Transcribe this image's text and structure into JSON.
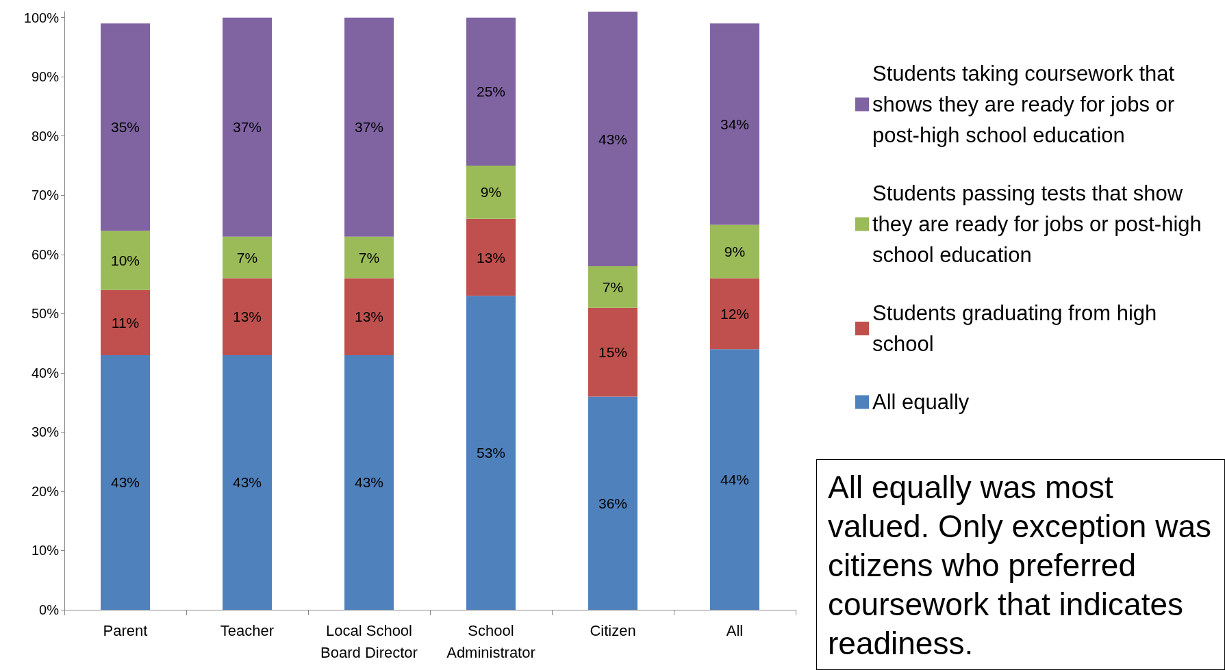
{
  "chart_data": {
    "type": "bar",
    "stacked": true,
    "categories": [
      "Parent",
      "Teacher",
      "Local School\nBoard Director",
      "School\nAdministrator",
      "Citizen",
      "All"
    ],
    "series": [
      {
        "name": "All equally",
        "color": "#4f81bd",
        "values": [
          43,
          43,
          43,
          53,
          36,
          44
        ],
        "value_labels": [
          "43%",
          "43%",
          "43%",
          "53%",
          "36%",
          "44%"
        ]
      },
      {
        "name": "Students graduating from high school",
        "color": "#c0504d",
        "values": [
          11,
          13,
          13,
          13,
          15,
          12
        ],
        "value_labels": [
          "11%",
          "13%",
          "13%",
          "13%",
          "15%",
          "12%"
        ]
      },
      {
        "name": "Students passing tests that show they are ready for jobs or post-high school education",
        "color": "#9bbb59",
        "values": [
          10,
          7,
          7,
          9,
          7,
          9
        ],
        "value_labels": [
          "10%",
          "7%",
          "7%",
          "9%",
          "7%",
          "9%"
        ]
      },
      {
        "name": "Students taking coursework that shows they are ready for jobs or post-high school education",
        "color": "#8064a2",
        "values": [
          35,
          37,
          37,
          25,
          43,
          34
        ],
        "value_labels": [
          "35%",
          "37%",
          "37%",
          "25%",
          "43%",
          "34%"
        ]
      }
    ],
    "ylim": [
      0,
      101
    ],
    "yticks": [
      {
        "value": 0,
        "label": "0%"
      },
      {
        "value": 10,
        "label": "10%"
      },
      {
        "value": 20,
        "label": "20%"
      },
      {
        "value": 30,
        "label": "30%"
      },
      {
        "value": 40,
        "label": "40%"
      },
      {
        "value": 50,
        "label": "50%"
      },
      {
        "value": 60,
        "label": "60%"
      },
      {
        "value": 70,
        "label": "70%"
      },
      {
        "value": 80,
        "label": "80%"
      },
      {
        "value": 90,
        "label": "90%"
      },
      {
        "value": 100,
        "label": "100%"
      }
    ],
    "grid": false,
    "legend": "right",
    "annotations": [
      "All equally was most valued. Only exception was citizens who preferred coursework that indicates readiness."
    ]
  }
}
